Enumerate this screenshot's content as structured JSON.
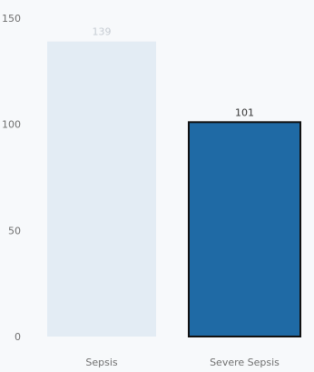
{
  "chart_data": {
    "type": "bar",
    "categories": [
      "Sepsis",
      "Severe Sepsis"
    ],
    "values": [
      139,
      101
    ],
    "data_labels": [
      "139",
      "101"
    ],
    "ylim": [
      0,
      150
    ],
    "y_ticks": [
      0,
      50,
      100,
      150
    ],
    "y_tick_labels": [
      "0",
      "50",
      "100",
      "150"
    ],
    "grid": false,
    "legend": "none",
    "selected_category": "Severe Sepsis",
    "colors": {
      "background": "#f7f9fb",
      "selected_bar": "#1f6aa5",
      "selected_outline": "#111111",
      "deselected_bar": "#e3ecf4",
      "selected_label": "#333333",
      "deselected_label": "#c6ccd3",
      "axis_text": "#6f6f6f"
    }
  }
}
